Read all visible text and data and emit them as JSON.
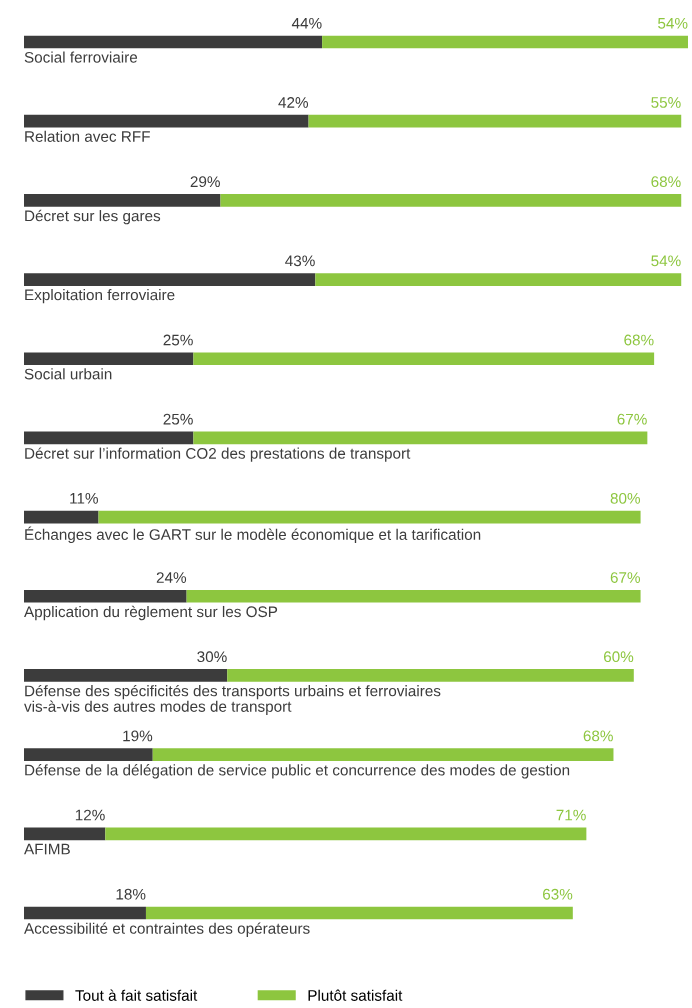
{
  "chart_data": {
    "type": "bar",
    "orientation": "horizontal",
    "stacked": true,
    "legend": "bottom",
    "categories": [
      "Social ferroviaire",
      "Relation avec RFF",
      "Décret sur les gares",
      "Exploitation ferroviaire",
      "Social urbain",
      "Décret sur l’information CO2 des prestations de transport",
      "Échanges avec le GART sur le modèle économique et la tarification",
      "Application du règlement sur les OSP",
      "Défense des spécificités des transports urbains et ferroviaires\nvis-à-vis des autres modes de transport",
      "Défense de la délégation de service public et concurrence des modes de gestion",
      "AFIMB",
      "Accessibilité et contraintes des opérateurs"
    ],
    "series": [
      {
        "name": "Tout à fait satisfait",
        "color": "#3c3c3c",
        "values": [
          44,
          42,
          29,
          43,
          25,
          25,
          11,
          24,
          30,
          19,
          12,
          18
        ],
        "value_labels": [
          "44%",
          "42%",
          "29%",
          "43%",
          "25%",
          "25%",
          "11%",
          "24%",
          "30%",
          "19%",
          "12%",
          "18%"
        ]
      },
      {
        "name": "Plutôt satisfait",
        "color": "#8dc63f",
        "values": [
          54,
          55,
          68,
          54,
          68,
          67,
          80,
          67,
          60,
          68,
          71,
          63
        ],
        "value_labels": [
          "54%",
          "55%",
          "68%",
          "54%",
          "68%",
          "67%",
          "80%",
          "67%",
          "60%",
          "68%",
          "71%",
          "63%"
        ]
      }
    ]
  }
}
